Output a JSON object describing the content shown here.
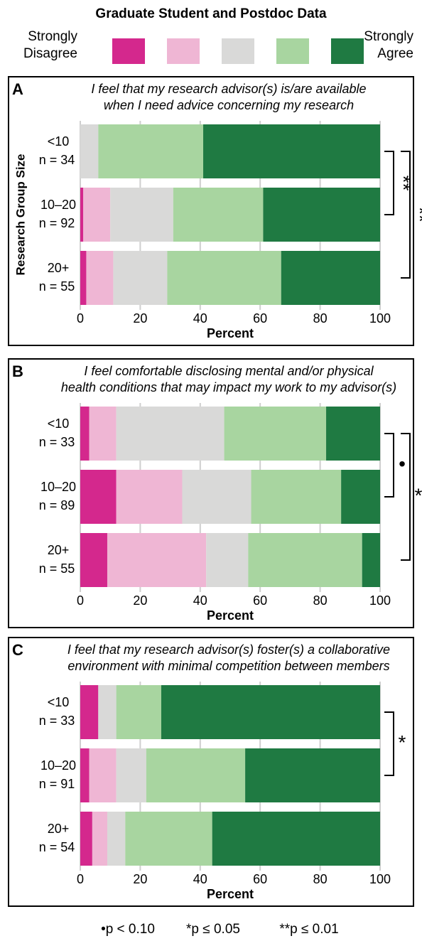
{
  "title": "Graduate Student and Postdoc Data",
  "legend": [
    {
      "name": "Strongly Disagree",
      "color": "#d4288d"
    },
    {
      "name": null,
      "color": "#efb6d4"
    },
    {
      "name": null,
      "color": "#d9d9d8"
    },
    {
      "name": null,
      "color": "#a8d5a0"
    },
    {
      "name": "Strongly Agree",
      "color": "#1f7a42"
    }
  ],
  "chart_data": [
    {
      "type": "bar",
      "orientation": "horizontal",
      "stacked": true,
      "panel": "A",
      "title": [
        "I feel that my research advisor(s) is/are available",
        "when I need advice concerning my research"
      ],
      "ylabel": "Research Group Size",
      "xlabel": "Percent",
      "categories": [
        "<10",
        "10–20",
        "20+"
      ],
      "group_sizes": [
        "n = 34",
        "n = 92",
        "n = 55"
      ],
      "series": [
        {
          "values": [
            0,
            1,
            2
          ]
        },
        {
          "values": [
            0,
            9,
            9
          ]
        },
        {
          "values": [
            6,
            21,
            18
          ]
        },
        {
          "values": [
            35,
            30,
            38
          ]
        },
        {
          "values": [
            59,
            39,
            33
          ]
        }
      ],
      "xlim": [
        0,
        100
      ],
      "xticks": [
        0,
        20,
        40,
        60,
        80,
        100
      ],
      "grid": true,
      "significance": [
        {
          "from": 0,
          "to": 1,
          "label": "**"
        },
        {
          "from": 0,
          "to": 2,
          "label": "**"
        }
      ]
    },
    {
      "type": "bar",
      "orientation": "horizontal",
      "stacked": true,
      "panel": "B",
      "title": [
        "I feel comfortable disclosing mental and/or physical",
        "health conditions that may impact my work to my advisor(s)"
      ],
      "xlabel": "Percent",
      "categories": [
        "<10",
        "10–20",
        "20+"
      ],
      "group_sizes": [
        "n = 33",
        "n = 89",
        "n = 55"
      ],
      "series": [
        {
          "values": [
            3,
            12,
            9
          ]
        },
        {
          "values": [
            9,
            22,
            33
          ]
        },
        {
          "values": [
            36,
            23,
            14
          ]
        },
        {
          "values": [
            34,
            30,
            38
          ]
        },
        {
          "values": [
            18,
            13,
            6
          ]
        }
      ],
      "xlim": [
        0,
        100
      ],
      "xticks": [
        0,
        20,
        40,
        60,
        80,
        100
      ],
      "grid": true,
      "significance": [
        {
          "from": 0,
          "to": 1,
          "label": "•"
        },
        {
          "from": 0,
          "to": 2,
          "label": "*"
        }
      ]
    },
    {
      "type": "bar",
      "orientation": "horizontal",
      "stacked": true,
      "panel": "C",
      "title": [
        "I feel that my research advisor(s) foster(s) a collaborative",
        "environment with minimal competition between members"
      ],
      "xlabel": "Percent",
      "categories": [
        "<10",
        "10–20",
        "20+"
      ],
      "group_sizes": [
        "n = 33",
        "n = 91",
        "n = 54"
      ],
      "series": [
        {
          "values": [
            6,
            3,
            4
          ]
        },
        {
          "values": [
            0,
            9,
            5
          ]
        },
        {
          "values": [
            6,
            10,
            6
          ]
        },
        {
          "values": [
            15,
            33,
            29
          ]
        },
        {
          "values": [
            73,
            45,
            56
          ]
        }
      ],
      "xlim": [
        0,
        100
      ],
      "xticks": [
        0,
        20,
        40,
        60,
        80,
        100
      ],
      "grid": true,
      "significance": [
        {
          "from": 0,
          "to": 1,
          "label": "*"
        }
      ]
    }
  ],
  "footnote": [
    "•p < 0.10",
    "*p ≤ 0.05",
    "**p ≤ 0.01"
  ]
}
